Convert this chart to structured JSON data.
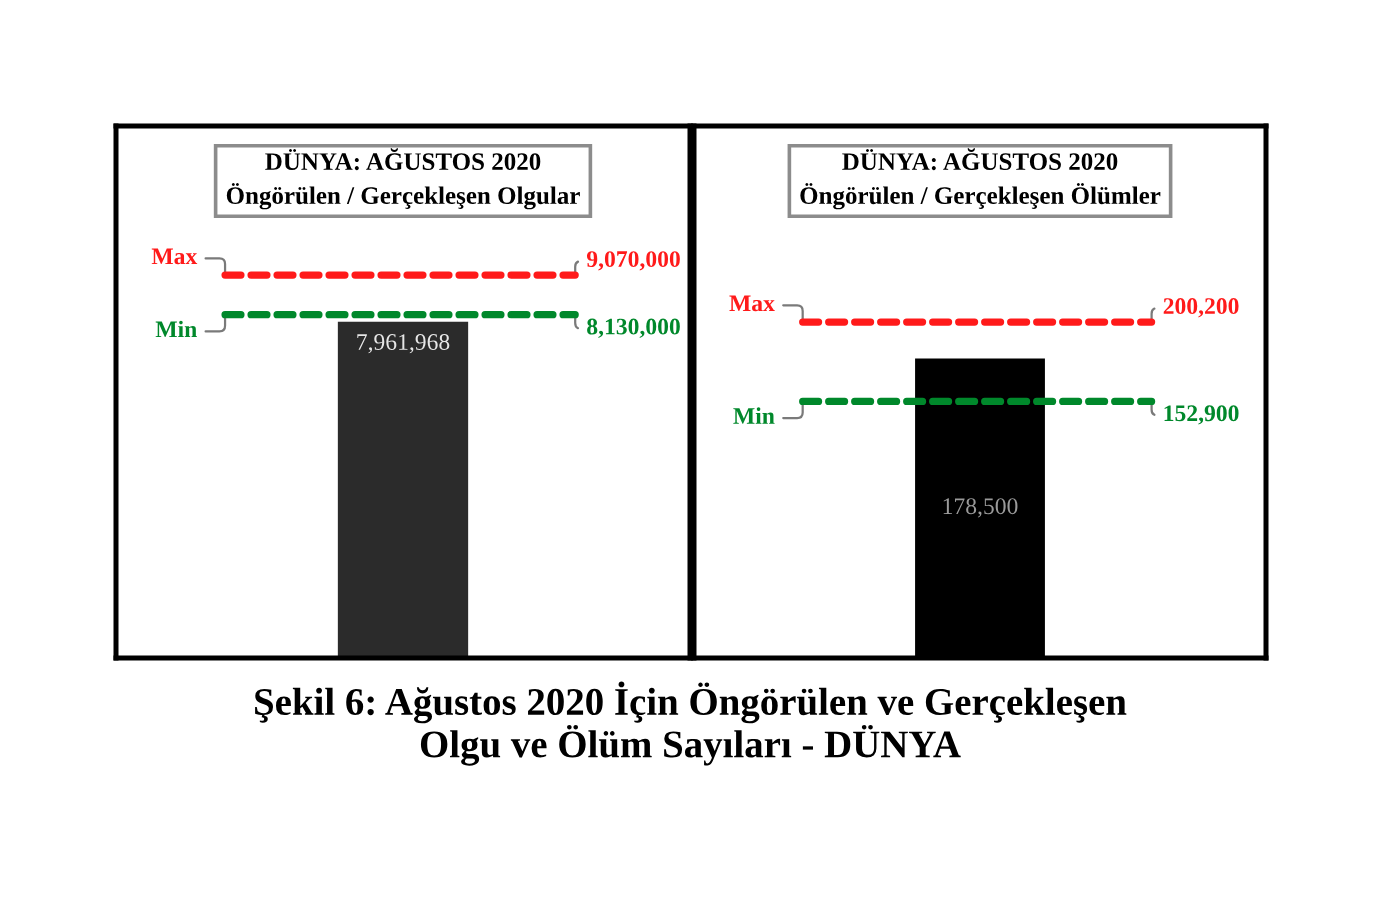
{
  "chart_data": [
    {
      "type": "bar",
      "title": "DÜNYA: AĞUSTOS 2020",
      "subtitle": "Öngörülen / Gerçekleşen Olgular",
      "categories": [
        null
      ],
      "values": [
        7961968
      ],
      "color": "#2b2b2b",
      "value_labels": [
        "7,961,968"
      ],
      "ylim": [
        0,
        12600000
      ],
      "tick_labels": false,
      "ref_lines": [
        {
          "axis": "y",
          "value": 9070000,
          "label": "Max",
          "color": "#ff1a1a",
          "line_style": "dashed"
        },
        {
          "axis": "y",
          "value": 8130000,
          "label": "Min",
          "color": "#00882b",
          "line_style": "dashed"
        }
      ],
      "annotations": [
        "9,070,000",
        "8,130,000",
        "Şekil 6: Ağustos 2020 İçin Öngörülen ve Gerçekleşen\nOlgu ve Ölüm Sayıları - DÜNYA"
      ]
    },
    {
      "type": "bar",
      "title": "DÜNYA: AĞUSTOS 2020",
      "subtitle": "Öngörülen / Gerçekleşen Ölümler",
      "categories": [
        null
      ],
      "values": [
        178500
      ],
      "color": "#000000",
      "value_labels": [
        "178,500"
      ],
      "ylim": [
        0,
        317000
      ],
      "tick_labels": false,
      "ref_lines": [
        {
          "axis": "y",
          "value": 200200,
          "label": "Max",
          "color": "#ff1a1a",
          "line_style": "dashed"
        },
        {
          "axis": "y",
          "value": 152900,
          "label": "Min",
          "color": "#00882b",
          "line_style": "dashed"
        }
      ],
      "annotations": [
        "200,200",
        "152,900"
      ]
    }
  ]
}
